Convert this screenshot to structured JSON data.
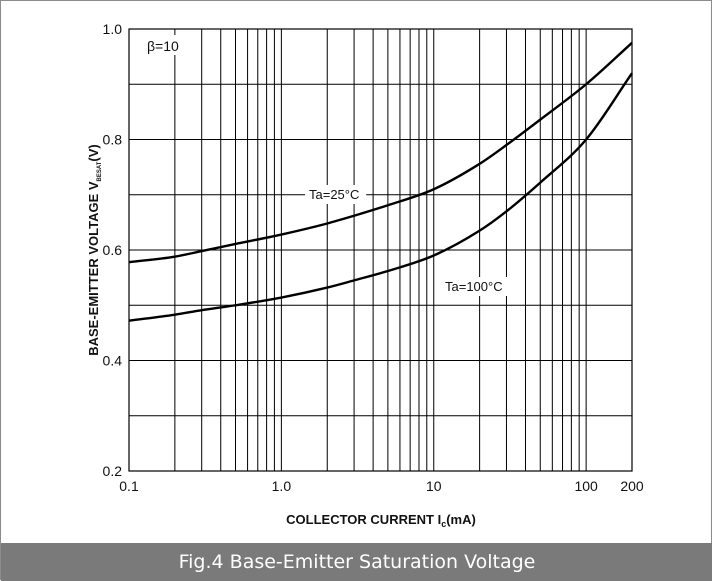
{
  "chart_data": {
    "type": "line",
    "xscale": "log",
    "xlim": [
      0.1,
      200
    ],
    "ylim": [
      0.2,
      1.0
    ],
    "xticks": [
      {
        "value": 0.1,
        "label": "0.1"
      },
      {
        "value": 1,
        "label": "1.0"
      },
      {
        "value": 10,
        "label": "10"
      },
      {
        "value": 100,
        "label": "100"
      },
      {
        "value": 200,
        "label": "200"
      }
    ],
    "yticks": [
      {
        "value": 0.2,
        "label": "0.2"
      },
      {
        "value": 0.4,
        "label": "0.4"
      },
      {
        "value": 0.6,
        "label": "0.6"
      },
      {
        "value": 0.8,
        "label": "0.8"
      },
      {
        "value": 1.0,
        "label": "1.0"
      }
    ],
    "ygrid_step": 0.1,
    "grid": true,
    "xlabel": {
      "main": "COLLECTOR CURRENT  I",
      "sub": "c",
      "unit": "(mA)"
    },
    "ylabel": {
      "main": "BASE-EMITTER VOLTAGE  V",
      "sub": "BESAT",
      "unit": "(V)"
    },
    "annotation": "β=10",
    "series": [
      {
        "name": "Ta=25°C",
        "x": [
          0.1,
          0.2,
          0.3,
          0.5,
          1,
          2,
          3,
          5,
          10,
          20,
          30,
          50,
          100,
          200
        ],
        "y": [
          0.578,
          0.588,
          0.598,
          0.611,
          0.628,
          0.648,
          0.662,
          0.681,
          0.71,
          0.756,
          0.79,
          0.836,
          0.9,
          0.975
        ]
      },
      {
        "name": "Ta=100°C",
        "x": [
          0.1,
          0.2,
          0.3,
          0.5,
          1,
          2,
          3,
          5,
          10,
          20,
          30,
          50,
          100,
          200
        ],
        "y": [
          0.472,
          0.483,
          0.491,
          0.5,
          0.514,
          0.532,
          0.545,
          0.562,
          0.59,
          0.635,
          0.67,
          0.722,
          0.8,
          0.92
        ]
      }
    ]
  },
  "caption": "Fig.4  Base-Emitter Saturation Voltage"
}
